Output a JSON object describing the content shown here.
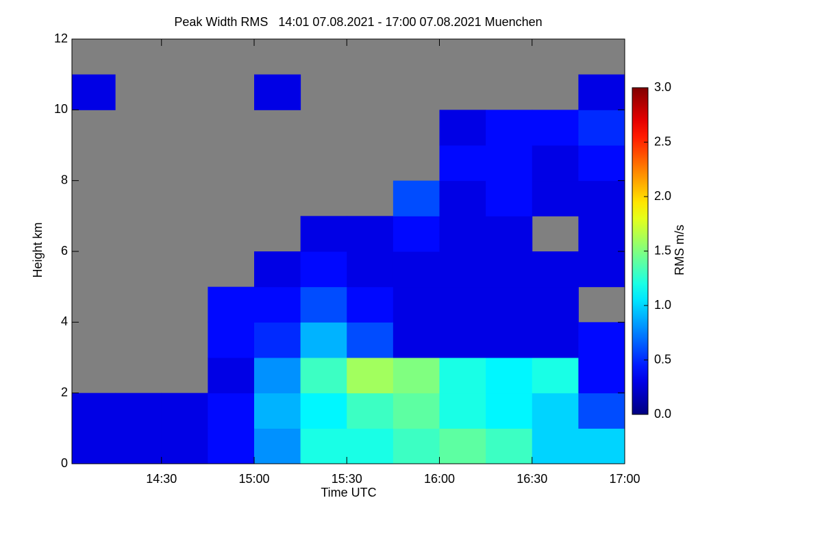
{
  "chart_data": {
    "type": "heatmap",
    "title": "Peak Width RMS   14:01 07.08.2021 - 17:00 07.08.2021 Muenchen",
    "xlabel": "Time UTC",
    "ylabel": "Height km",
    "colorbar_label": "RMS m/s",
    "colormap": "jet",
    "nan_color": "#808080",
    "x_edges": [
      841,
      855,
      870,
      885,
      900,
      915,
      930,
      945,
      960,
      975,
      990,
      1005,
      1020
    ],
    "y_edges": [
      0,
      1,
      2,
      3,
      4,
      5,
      6,
      7,
      8,
      9,
      10,
      11,
      12
    ],
    "z": [
      [
        0.3,
        0.3,
        0.3,
        0.4,
        0.8,
        1.2,
        1.2,
        1.3,
        1.4,
        1.3,
        1.0,
        1.0
      ],
      [
        0.3,
        0.3,
        0.3,
        0.4,
        0.9,
        1.1,
        1.3,
        1.4,
        1.2,
        1.1,
        1.0,
        0.6
      ],
      [
        null,
        null,
        null,
        0.3,
        0.8,
        1.3,
        1.6,
        1.5,
        1.2,
        1.1,
        1.2,
        0.4
      ],
      [
        null,
        null,
        null,
        0.4,
        0.5,
        0.9,
        0.6,
        0.3,
        0.3,
        0.3,
        0.3,
        0.4
      ],
      [
        null,
        null,
        null,
        0.4,
        0.4,
        0.6,
        0.4,
        0.3,
        0.3,
        0.3,
        0.3,
        null
      ],
      [
        null,
        null,
        null,
        null,
        0.3,
        0.4,
        0.3,
        0.3,
        0.3,
        0.3,
        0.3,
        0.3
      ],
      [
        null,
        null,
        null,
        null,
        null,
        0.3,
        0.3,
        0.4,
        0.3,
        0.3,
        null,
        0.3
      ],
      [
        null,
        null,
        null,
        null,
        null,
        null,
        null,
        0.6,
        0.3,
        0.4,
        0.3,
        0.3
      ],
      [
        null,
        null,
        null,
        null,
        null,
        null,
        null,
        null,
        0.4,
        0.4,
        0.3,
        0.4
      ],
      [
        null,
        null,
        null,
        null,
        null,
        null,
        null,
        null,
        0.3,
        0.4,
        0.4,
        0.5
      ],
      [
        0.3,
        null,
        null,
        null,
        0.3,
        null,
        null,
        null,
        null,
        null,
        null,
        0.3
      ],
      [
        null,
        null,
        null,
        null,
        null,
        null,
        null,
        null,
        null,
        null,
        null,
        null
      ]
    ],
    "xlim": [
      841,
      1020
    ],
    "ylim": [
      0,
      12
    ],
    "xticks": [
      {
        "value": 870,
        "label": "14:30"
      },
      {
        "value": 900,
        "label": "15:00"
      },
      {
        "value": 930,
        "label": "15:30"
      },
      {
        "value": 960,
        "label": "16:00"
      },
      {
        "value": 990,
        "label": "16:30"
      },
      {
        "value": 1020,
        "label": "17:00"
      }
    ],
    "yticks": [
      0,
      2,
      4,
      6,
      8,
      10,
      12
    ],
    "clim": [
      0,
      3
    ],
    "cticks": [
      {
        "value": 0,
        "label": "0.0"
      },
      {
        "value": 0.5,
        "label": "0.5"
      },
      {
        "value": 1,
        "label": "1.0"
      },
      {
        "value": 1.5,
        "label": "1.5"
      },
      {
        "value": 2,
        "label": "2.0"
      },
      {
        "value": 2.5,
        "label": "2.5"
      },
      {
        "value": 3,
        "label": "3.0"
      }
    ]
  }
}
